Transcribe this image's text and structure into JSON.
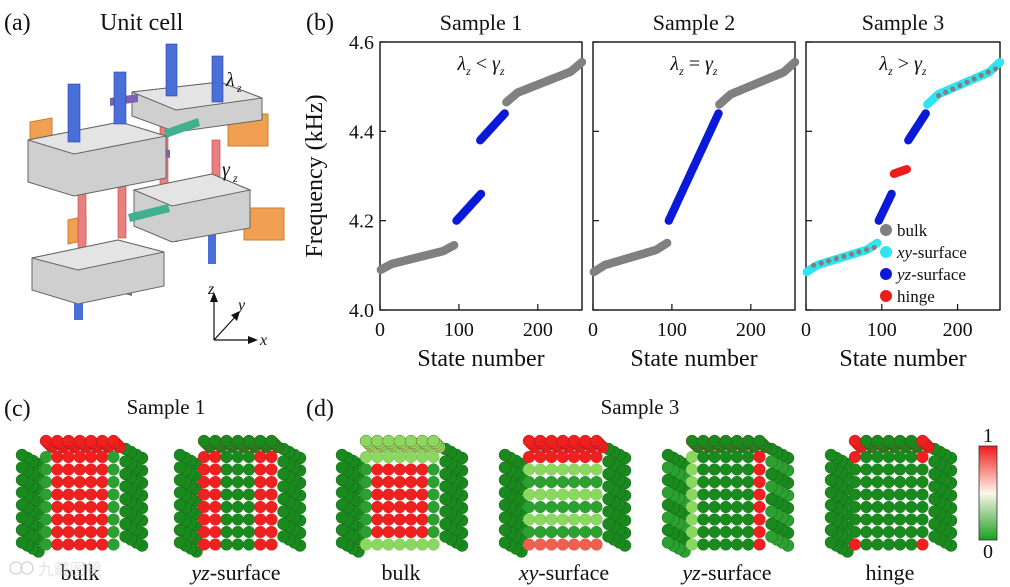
{
  "panels": {
    "a": {
      "label": "(a)",
      "title": "Unit cell",
      "lambda": "λ",
      "gamma": "γ",
      "sub": "z",
      "axes": {
        "x": "x",
        "y": "y",
        "z": "z"
      }
    },
    "b": {
      "label": "(b)"
    },
    "c": {
      "label": "(c)",
      "title": "Sample 1",
      "captions": [
        "bulk",
        "yz-surface"
      ]
    },
    "d": {
      "label": "(d)",
      "title": "Sample 3",
      "captions": [
        "bulk",
        "xy-surface",
        "yz-surface",
        "hinge"
      ]
    }
  },
  "colorbar": {
    "max": "1",
    "min": "0"
  },
  "watermark": "九藏图镜",
  "colors": {
    "bulk": "#808080",
    "xy-surface": "#30e4f0",
    "yz-surface": "#0a1ad8",
    "hinge": "#ee1c1c",
    "pillar_blue": "#4a6fd8",
    "pillar_red": "#e88080",
    "block": "#cfcfcf",
    "orange": "#f0a050",
    "green_link": "#40b090",
    "purple_link": "#8060b0"
  },
  "chart_data": [
    {
      "type": "scatter",
      "title": "Sample 1",
      "annotation": {
        "lhs": "λ",
        "op": "<",
        "rhs": "γ",
        "sub": "z"
      },
      "xlabel": "State number",
      "ylabel": "Frequency (kHz)",
      "xlim": [
        0,
        256
      ],
      "ylim": [
        4.0,
        4.6
      ],
      "xticks": [
        0,
        100,
        200
      ],
      "yticks": [
        4.0,
        4.2,
        4.4,
        4.6
      ],
      "ytick_labels": [
        "4.0",
        "4.2",
        "4.4",
        "4.6"
      ],
      "series": [
        {
          "name": "bulk",
          "segments": [
            {
              "x": [
                1,
                94
              ],
              "y": [
                4.09,
                4.145
              ],
              "shape": "scurve"
            },
            {
              "x": [
                160,
                256
              ],
              "y": [
                4.465,
                4.555
              ],
              "shape": "scurve"
            }
          ]
        },
        {
          "name": "yz-surface",
          "segments": [
            {
              "x": [
                97,
                128
              ],
              "y": [
                4.2,
                4.26
              ],
              "shape": "steps"
            },
            {
              "x": [
                127,
                158
              ],
              "y": [
                4.38,
                4.44
              ],
              "shape": "steps"
            }
          ]
        }
      ]
    },
    {
      "type": "scatter",
      "title": "Sample 2",
      "annotation": {
        "lhs": "λ",
        "op": "=",
        "rhs": "γ",
        "sub": "z"
      },
      "xlabel": "State number",
      "xlim": [
        0,
        256
      ],
      "ylim": [
        4.0,
        4.6
      ],
      "xticks": [
        0,
        100,
        200
      ],
      "series": [
        {
          "name": "bulk",
          "segments": [
            {
              "x": [
                1,
                94
              ],
              "y": [
                4.085,
                4.15
              ],
              "shape": "scurve"
            },
            {
              "x": [
                160,
                256
              ],
              "y": [
                4.46,
                4.555
              ],
              "shape": "scurve"
            }
          ]
        },
        {
          "name": "yz-surface",
          "segments": [
            {
              "x": [
                96,
                159
              ],
              "y": [
                4.2,
                4.44
              ],
              "shape": "steps"
            }
          ]
        }
      ]
    },
    {
      "type": "scatter",
      "title": "Sample 3",
      "annotation": {
        "lhs": "λ",
        "op": ">",
        "rhs": "γ",
        "sub": "z"
      },
      "xlabel": "State number",
      "xlim": [
        0,
        256
      ],
      "ylim": [
        4.0,
        4.6
      ],
      "xticks": [
        0,
        100,
        200
      ],
      "legend": {
        "placement": "lower-right",
        "entries": [
          "bulk",
          "xy-surface",
          "yz-surface",
          "hinge"
        ]
      },
      "series": [
        {
          "name": "xy-surface",
          "segments": [
            {
              "x": [
                1,
                94
              ],
              "y": [
                4.085,
                4.15
              ],
              "shape": "scurve"
            },
            {
              "x": [
                160,
                256
              ],
              "y": [
                4.46,
                4.555
              ],
              "shape": "scurve"
            }
          ]
        },
        {
          "name": "bulk",
          "segments": [
            {
              "x": [
                10,
                90
              ],
              "y": [
                4.1,
                4.14
              ],
              "shape": "sparse"
            },
            {
              "x": [
                175,
                250
              ],
              "y": [
                4.48,
                4.54
              ],
              "shape": "sparse"
            }
          ]
        },
        {
          "name": "yz-surface",
          "segments": [
            {
              "x": [
                96,
                113
              ],
              "y": [
                4.2,
                4.26
              ],
              "shape": "steps"
            },
            {
              "x": [
                135,
                158
              ],
              "y": [
                4.38,
                4.44
              ],
              "shape": "steps"
            }
          ]
        },
        {
          "name": "hinge",
          "segments": [
            {
              "x": [
                116,
                133
              ],
              "y": [
                4.305,
                4.315
              ],
              "shape": "line"
            }
          ]
        }
      ]
    }
  ],
  "mode_maps": [
    {
      "id": "c-bulk",
      "pattern": "bulk1"
    },
    {
      "id": "c-yz",
      "pattern": "yz"
    },
    {
      "id": "d-bulk",
      "pattern": "bulk3"
    },
    {
      "id": "d-xy",
      "pattern": "xy"
    },
    {
      "id": "d-yz",
      "pattern": "yz3"
    },
    {
      "id": "d-hinge",
      "pattern": "hinge"
    }
  ]
}
